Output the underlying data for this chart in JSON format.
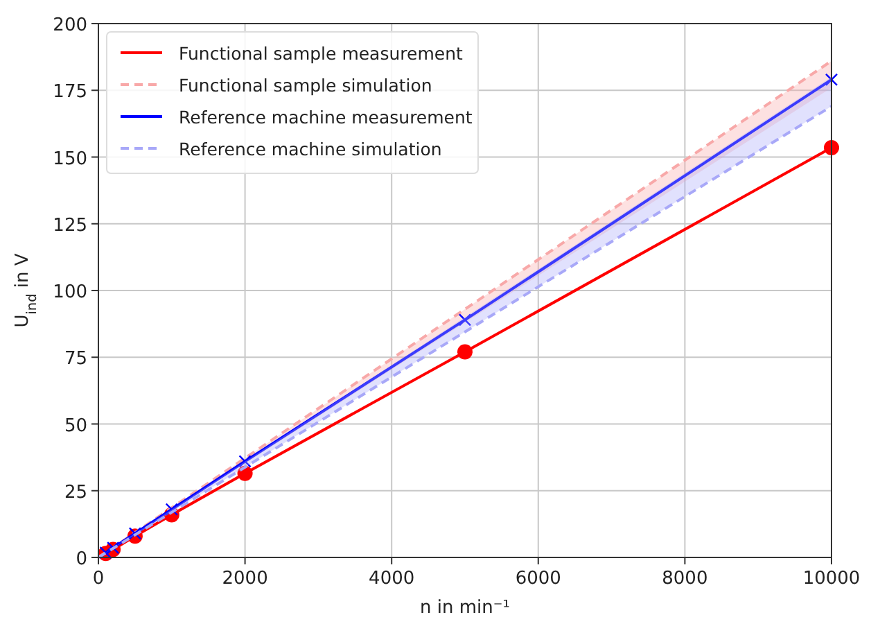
{
  "chart_data": {
    "type": "line",
    "xlabel": "n in min⁻¹",
    "ylabel": "U$_{ind}$ in V",
    "xlim": [
      0,
      10000
    ],
    "ylim": [
      0,
      200
    ],
    "xticks": [
      0,
      2000,
      4000,
      6000,
      8000,
      10000
    ],
    "yticks": [
      0,
      25,
      50,
      75,
      100,
      125,
      150,
      175,
      200
    ],
    "grid": true,
    "legend": "top left",
    "series": [
      {
        "name": "Functional sample measurement",
        "color": "#ff0000",
        "marker": "circle",
        "line_style": "solid",
        "x": [
          100,
          200,
          500,
          1000,
          2000,
          5000,
          10000
        ],
        "values": [
          1.5,
          3,
          8,
          16,
          31.5,
          77,
          153.5
        ]
      },
      {
        "name": "Functional sample simulation",
        "color": "#f8a8a8",
        "marker": "none",
        "line_style": "dashed",
        "x": [
          0,
          10000
        ],
        "values": [
          0,
          186
        ],
        "lower": [
          0,
          176
        ],
        "upper": [
          0,
          186
        ]
      },
      {
        "name": "Reference machine measurement",
        "color": "#0000ff",
        "marker": "cross",
        "line_style": "solid",
        "x": [
          100,
          200,
          500,
          1000,
          2000,
          5000,
          10000
        ],
        "values": [
          1.8,
          3.6,
          9,
          18,
          36,
          89,
          179
        ]
      },
      {
        "name": "Reference machine simulation",
        "color": "#a8a8f8",
        "marker": "none",
        "line_style": "dashed",
        "x": [
          0,
          10000
        ],
        "values": [
          0,
          169
        ],
        "lower": [
          0,
          169
        ],
        "upper": [
          0,
          180
        ]
      }
    ]
  }
}
